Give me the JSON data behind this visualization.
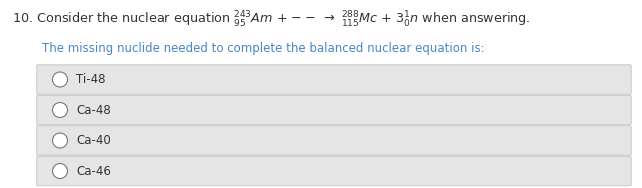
{
  "question_text": "10. Consider the nuclear equation $\\mathregular{^{243}_{95}}\\mathit{Am}$ + —— → $\\mathregular{^{288}_{115}}\\mathit{Mc}$ + $3\\mathregular{^{1}_{0}}\\mathit{n}$ when answering.",
  "sub_question": "The missing nuclide needed to complete the balanced nuclear equation is:",
  "options": [
    "Ti-48",
    "Ca-48",
    "Ca-40",
    "Ca-46"
  ],
  "bg_color": "#ffffff",
  "option_box_color": "#e5e5e5",
  "option_border_color": "#c8c8c8",
  "question_color": "#333333",
  "sub_question_color": "#4a86c8",
  "option_text_color": "#333333",
  "circle_color": "#777777",
  "fig_width": 6.42,
  "fig_height": 1.88,
  "dpi": 100
}
